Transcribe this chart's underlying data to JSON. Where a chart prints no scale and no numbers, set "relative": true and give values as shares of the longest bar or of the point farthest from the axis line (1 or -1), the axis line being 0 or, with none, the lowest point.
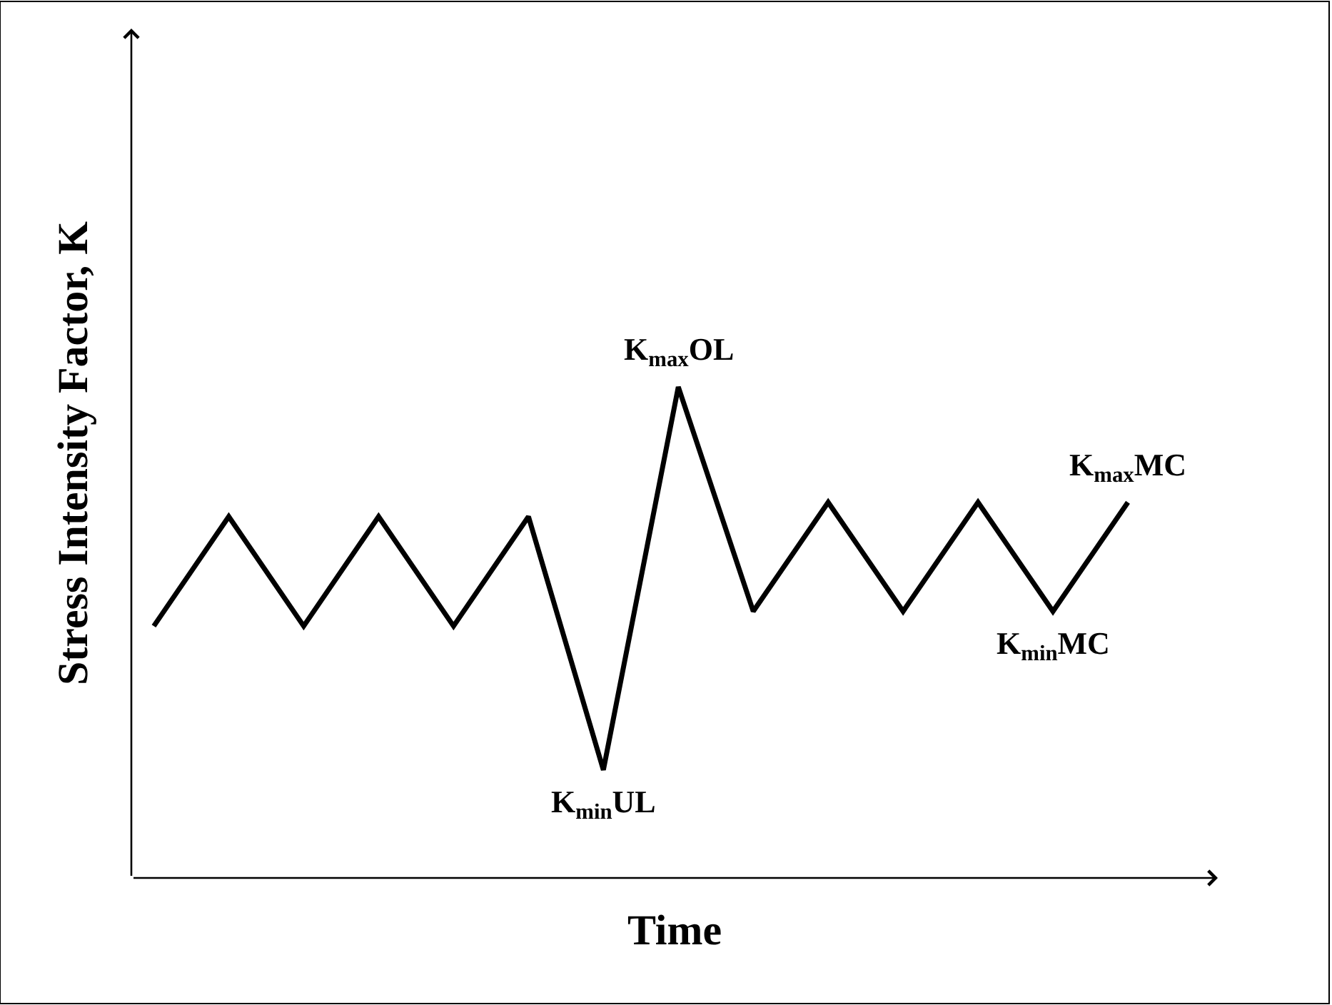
{
  "chart_data": {
    "type": "line",
    "relative": true,
    "xlabel": "Time",
    "ylabel": "Stress Intensity Factor, K",
    "categories": [
      null,
      null,
      null,
      null,
      null,
      null,
      null,
      null,
      null,
      null,
      null,
      null,
      null,
      null
    ],
    "series": [
      {
        "color": "#000000",
        "values": [
          0.513,
          0.736,
          0.513,
          0.736,
          0.513,
          0.736,
          0.22,
          1,
          0.543,
          0.765,
          0.543,
          0.765,
          0.543,
          0.765
        ]
      }
    ],
    "annotations": [
      {
        "text": "K$_{min}$UL",
        "y": 0.22
      },
      {
        "text": "K$_{max}$OL",
        "y": 1
      },
      {
        "text": "K$_{min}$MC",
        "y": 0.543
      },
      {
        "text": "K$_{max}$MC",
        "y": 0.765
      }
    ],
    "marker": "none",
    "line_style": "solid"
  }
}
